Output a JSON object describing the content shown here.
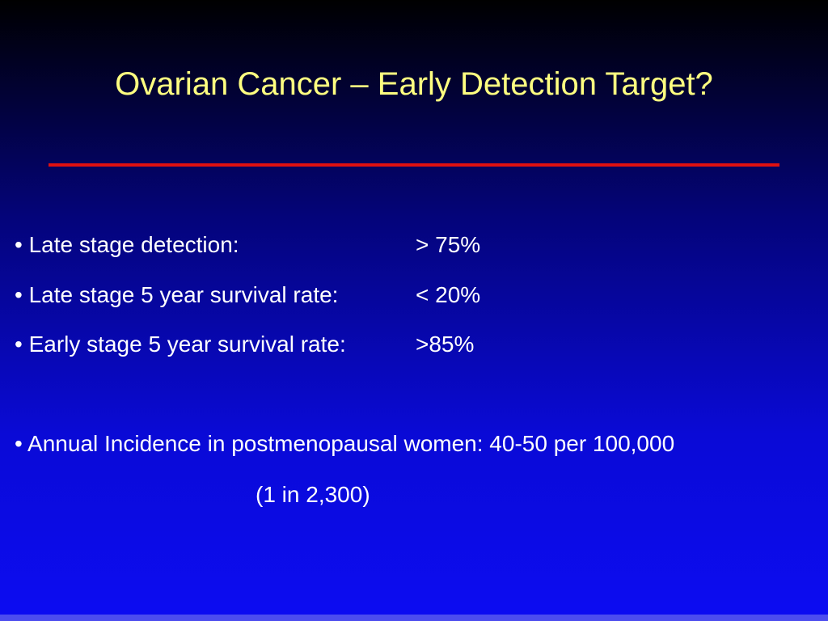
{
  "slide": {
    "title": "Ovarian Cancer – Early Detection Target?",
    "bullet_char": "•",
    "colors": {
      "title": "#ffff80",
      "rule": "#e01010",
      "text": "#ffffff",
      "background_top": "#000000",
      "background_bottom": "#0c0cf2"
    },
    "stats": [
      {
        "label": "Late stage detection:",
        "value": "> 75%"
      },
      {
        "label": "Late stage 5 year survival rate:",
        "value": "< 20%"
      },
      {
        "label": "Early stage 5 year survival rate:",
        "value": ">85%"
      }
    ],
    "incidence": {
      "text": "Annual Incidence in postmenopausal women: 40-50 per 100,000",
      "note": "(1 in 2,300)"
    }
  }
}
